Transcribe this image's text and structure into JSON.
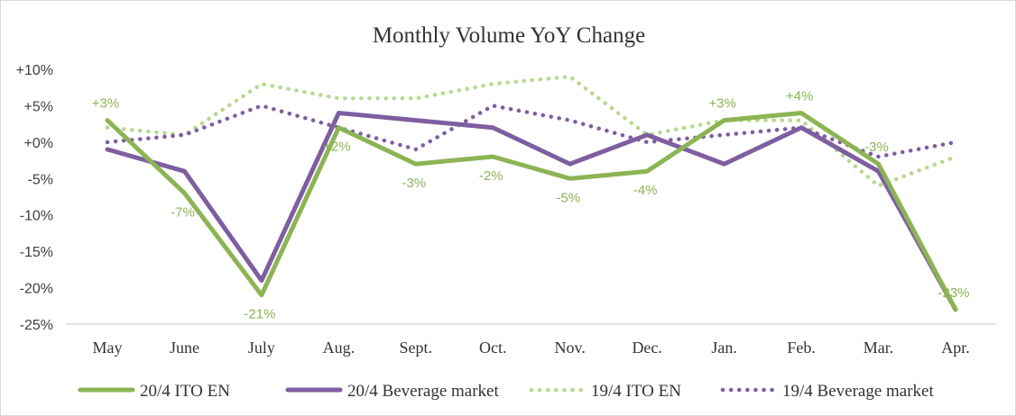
{
  "chart_data": {
    "type": "line",
    "title": "Monthly Volume YoY Change",
    "categories": [
      "May",
      "June",
      "July",
      "Aug.",
      "Sept.",
      "Oct.",
      "Nov.",
      "Dec.",
      "Jan.",
      "Feb.",
      "Mar.",
      "Apr."
    ],
    "y_ticks": [
      "+10%",
      "+5%",
      "+0%",
      "-5%",
      "-10%",
      "-15%",
      "-20%",
      "-25%"
    ],
    "ylim": [
      -25,
      10
    ],
    "y_step": 5,
    "grid": false,
    "legend_position": "bottom",
    "series": [
      {
        "name": "20/4 ITO EN",
        "values": [
          3,
          -7,
          -21,
          2,
          -3,
          -2,
          -5,
          -4,
          3,
          4,
          -3,
          -23
        ],
        "color": "#8cb454",
        "style": "solid",
        "labels": [
          "+3%",
          "-7%",
          "-21%",
          "+2%",
          "-3%",
          "-2%",
          "-5%",
          "-4%",
          "+3%",
          "+4%",
          "-3%",
          "-23%"
        ]
      },
      {
        "name": "20/4 Beverage market",
        "values": [
          -1,
          -4,
          -19,
          4,
          3,
          2,
          -3,
          1,
          -3,
          2,
          -4,
          -23
        ],
        "color": "#7e5ea0",
        "style": "solid"
      },
      {
        "name": "19/4 ITO EN",
        "values": [
          2,
          1,
          8,
          6,
          6,
          8,
          9,
          1,
          3,
          3,
          -6,
          -2
        ],
        "color": "#b7d88e",
        "style": "dotted"
      },
      {
        "name": "19/4 Beverage market",
        "values": [
          0,
          1,
          5,
          2,
          -1,
          5,
          3,
          0,
          1,
          2,
          -2,
          0
        ],
        "color": "#7e5ea0",
        "style": "dotted"
      }
    ]
  }
}
